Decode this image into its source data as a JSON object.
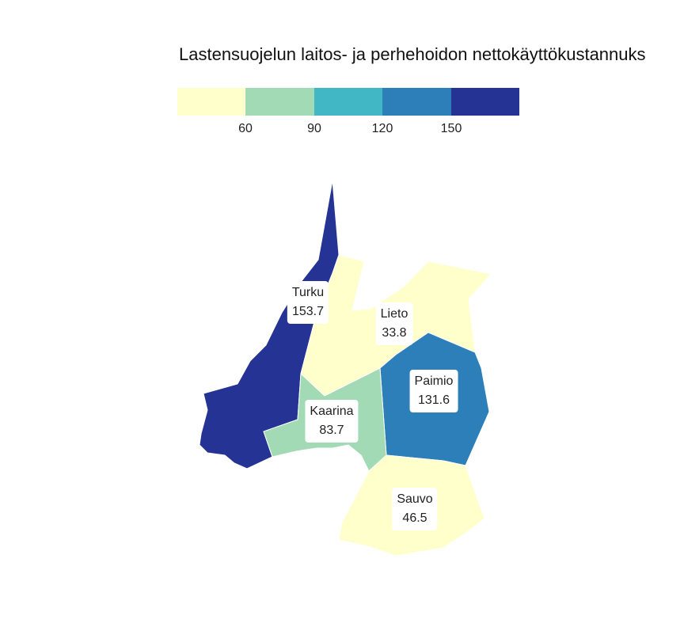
{
  "title": "Lastensuojelun laitos- ja perhehoidon nettokäyttökustannuks",
  "legend": {
    "colors": [
      "#ffffcc",
      "#a1dab4",
      "#41b6c4",
      "#2c7fb8",
      "#253494"
    ],
    "ticks": [
      "60",
      "90",
      "120",
      "150"
    ]
  },
  "regions": [
    {
      "name": "Turku",
      "value": "153.7",
      "color": "#253494"
    },
    {
      "name": "Lieto",
      "value": "33.8",
      "color": "#ffffcc"
    },
    {
      "name": "Paimio",
      "value": "131.6",
      "color": "#2c7fb8"
    },
    {
      "name": "Kaarina",
      "value": "83.7",
      "color": "#a1dab4"
    },
    {
      "name": "Sauvo",
      "value": "46.5",
      "color": "#ffffcc"
    }
  ]
}
